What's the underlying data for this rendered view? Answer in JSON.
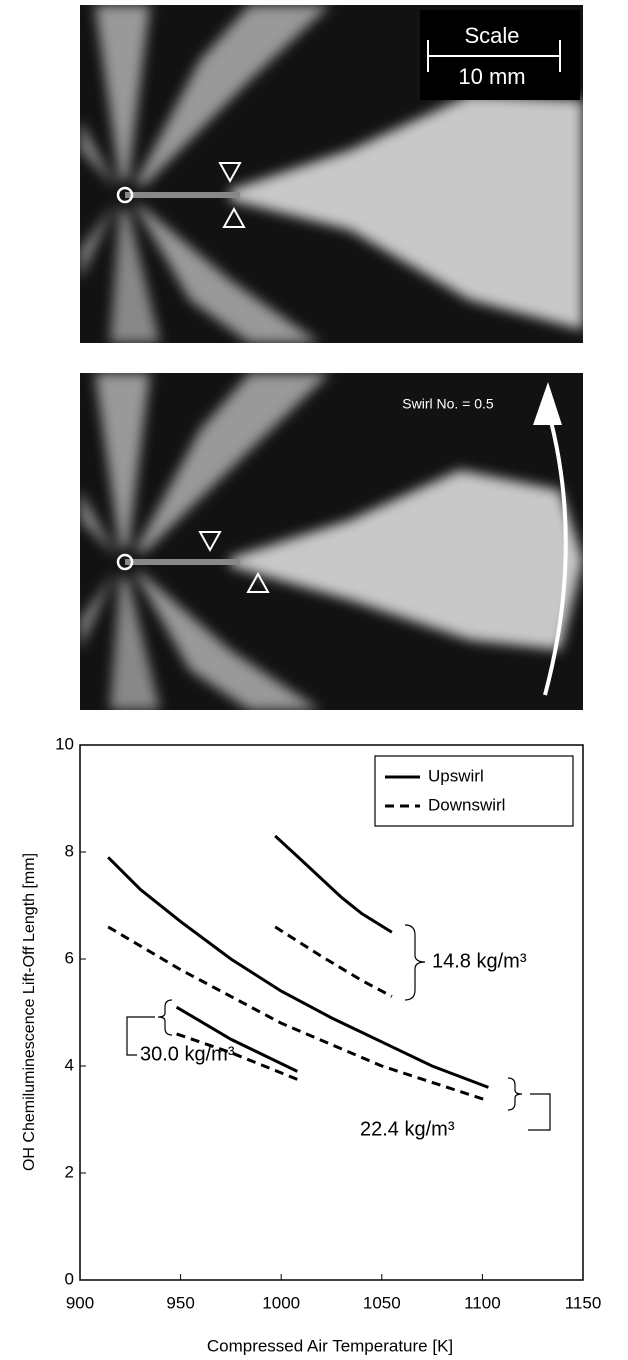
{
  "images": [
    {
      "scale_label": "Scale",
      "scale_value": "10 mm"
    },
    {
      "swirl_label": "Swirl No. = 0.5"
    }
  ],
  "chart_data": {
    "type": "line",
    "xlabel": "Compressed Air Temperature [K]",
    "ylabel": "OH Chemiluminescence Lift-Off Length [mm]",
    "xlim": [
      900,
      1150
    ],
    "xticks": [
      900,
      950,
      1000,
      1050,
      1100,
      1150
    ],
    "ylim": [
      0,
      10
    ],
    "yticks": [
      0,
      2,
      4,
      6,
      8,
      10
    ],
    "legend": "upper right",
    "annotations": [
      "14.8 kg/m³",
      "22.4 kg/m³",
      "30.0 kg/m³"
    ],
    "series": [
      {
        "name": "Upswirl",
        "color": "#000000",
        "dash": "solid",
        "curves": [
          {
            "x": [
              997,
              1010,
              1020,
              1030,
              1040,
              1055
            ],
            "values": [
              8.3,
              7.85,
              7.5,
              7.15,
              6.85,
              6.5
            ]
          },
          {
            "x": [
              914,
              930,
              950,
              975,
              1000,
              1025,
              1050,
              1075,
              1103
            ],
            "values": [
              7.9,
              7.3,
              6.7,
              6.0,
              5.4,
              4.9,
              4.45,
              4.0,
              3.6
            ]
          },
          {
            "x": [
              948,
              975,
              1008
            ],
            "values": [
              5.1,
              4.5,
              3.9
            ]
          }
        ]
      },
      {
        "name": "Downswirl",
        "color": "#000000",
        "dash": "dashed",
        "curves": [
          {
            "x": [
              997,
              1020,
              1040,
              1055
            ],
            "values": [
              6.6,
              6.05,
              5.6,
              5.3
            ]
          },
          {
            "x": [
              914,
              950,
              1000,
              1050,
              1103
            ],
            "values": [
              6.6,
              5.8,
              4.8,
              4.0,
              3.35
            ]
          },
          {
            "x": [
              948,
              975,
              1008
            ],
            "values": [
              4.6,
              4.25,
              3.75
            ]
          }
        ]
      }
    ]
  }
}
